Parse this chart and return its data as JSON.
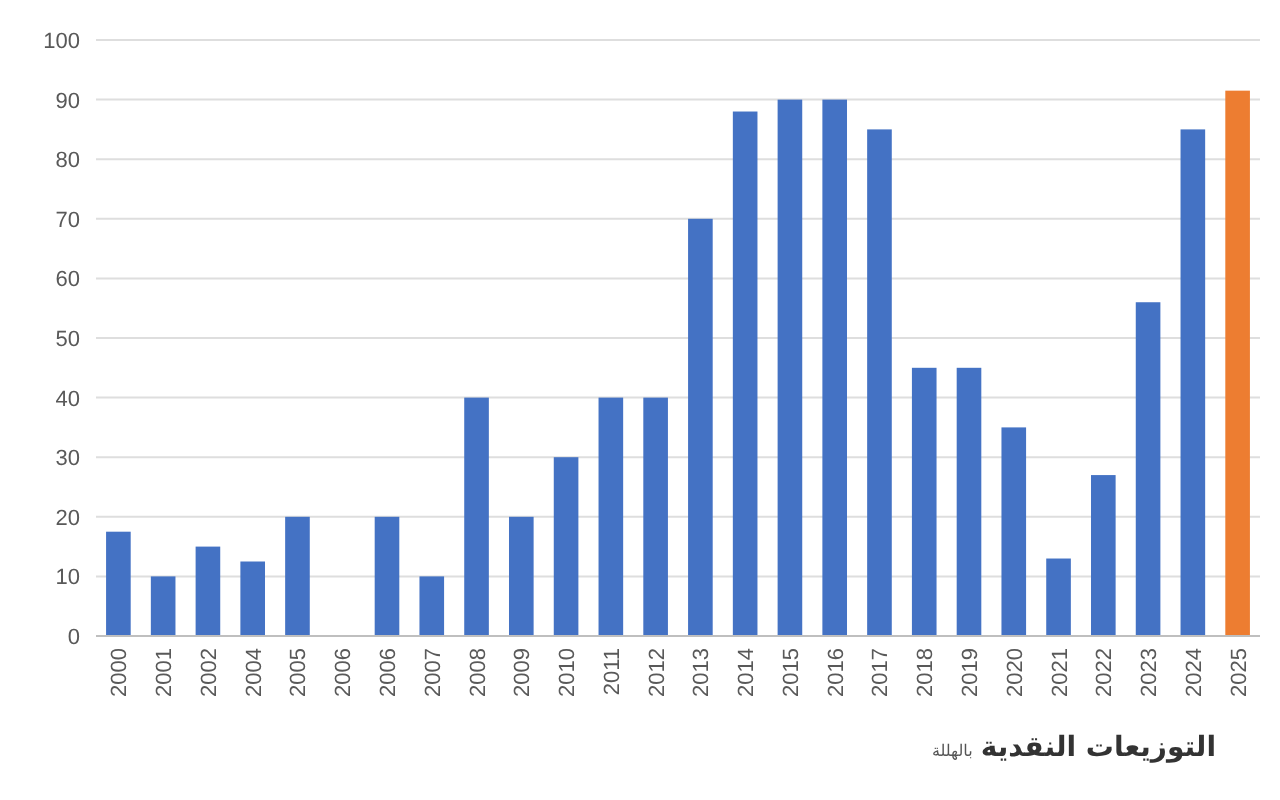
{
  "chart_data": {
    "type": "bar",
    "xlabel": "التوزيعات النقدية",
    "annotations": [
      "بالهللة"
    ],
    "categories": [
      "2000",
      "2001",
      "2002",
      "2004",
      "2005",
      "2006",
      "2006",
      "2007",
      "2008",
      "2009",
      "2010",
      "2011",
      "2012",
      "2013",
      "2014",
      "2015",
      "2016",
      "2017",
      "2018",
      "2019",
      "2020",
      "2021",
      "2022",
      "2023",
      "2024",
      "2025"
    ],
    "values": [
      17.5,
      10,
      15,
      12.5,
      20,
      0,
      20,
      10,
      40,
      20,
      30,
      40,
      40,
      70,
      88,
      90,
      90,
      85,
      45,
      45,
      35,
      13,
      27,
      56,
      85,
      91.5
    ],
    "colors": [
      "#4472c4",
      "#4472c4",
      "#4472c4",
      "#4472c4",
      "#4472c4",
      "#4472c4",
      "#4472c4",
      "#4472c4",
      "#4472c4",
      "#4472c4",
      "#4472c4",
      "#4472c4",
      "#4472c4",
      "#4472c4",
      "#4472c4",
      "#4472c4",
      "#4472c4",
      "#4472c4",
      "#4472c4",
      "#4472c4",
      "#4472c4",
      "#4472c4",
      "#4472c4",
      "#4472c4",
      "#4472c4",
      "#ed7d31"
    ],
    "ylim": [
      0,
      100
    ],
    "yticks": [
      0,
      10,
      20,
      30,
      40,
      50,
      60,
      70,
      80,
      90,
      100
    ],
    "grid": "y"
  }
}
